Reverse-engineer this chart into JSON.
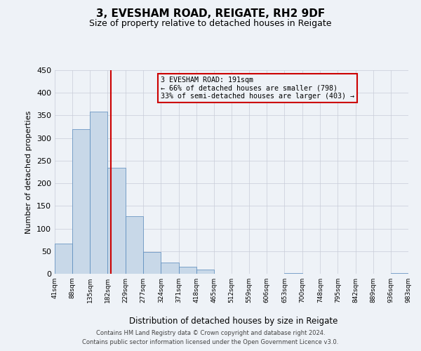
{
  "title": "3, EVESHAM ROAD, REIGATE, RH2 9DF",
  "subtitle": "Size of property relative to detached houses in Reigate",
  "xlabel": "Distribution of detached houses by size in Reigate",
  "ylabel": "Number of detached properties",
  "bin_edges": [
    41,
    88,
    135,
    182,
    229,
    277,
    324,
    371,
    418,
    465,
    512,
    559,
    606,
    653,
    700,
    748,
    795,
    842,
    889,
    936,
    983
  ],
  "bin_labels": [
    "41sqm",
    "88sqm",
    "135sqm",
    "182sqm",
    "229sqm",
    "277sqm",
    "324sqm",
    "371sqm",
    "418sqm",
    "465sqm",
    "512sqm",
    "559sqm",
    "606sqm",
    "653sqm",
    "700sqm",
    "748sqm",
    "795sqm",
    "842sqm",
    "889sqm",
    "936sqm",
    "983sqm"
  ],
  "counts": [
    67,
    320,
    358,
    235,
    127,
    48,
    25,
    15,
    9,
    0,
    0,
    0,
    0,
    2,
    0,
    0,
    0,
    0,
    0,
    2
  ],
  "bar_color": "#c8d8e8",
  "bar_edge_color": "#5588bb",
  "property_size": 191,
  "vline_color": "#cc0000",
  "annotation_text": "3 EVESHAM ROAD: 191sqm\n← 66% of detached houses are smaller (798)\n33% of semi-detached houses are larger (403) →",
  "annotation_box_edge_color": "#cc0000",
  "ylim": [
    0,
    450
  ],
  "yticks": [
    0,
    50,
    100,
    150,
    200,
    250,
    300,
    350,
    400,
    450
  ],
  "footer_line1": "Contains HM Land Registry data © Crown copyright and database right 2024.",
  "footer_line2": "Contains public sector information licensed under the Open Government Licence v3.0.",
  "bg_color": "#eef2f7",
  "grid_color": "#c8ccd8"
}
